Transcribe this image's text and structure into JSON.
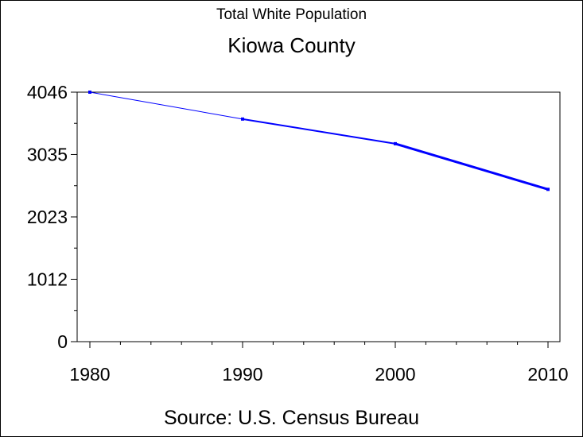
{
  "chart_data": {
    "type": "line",
    "title": "Total White Population",
    "subtitle": "Kiowa County",
    "footnote": "Source: U.S. Census Bureau",
    "x": [
      1980,
      1990,
      2000,
      2010
    ],
    "x_tick_labels": [
      "1980",
      "1990",
      "2000",
      "2010"
    ],
    "series": [
      {
        "values": [
          4046,
          3610,
          3210,
          2470
        ],
        "color": "#0000ff"
      }
    ],
    "y_ticks": [
      0,
      1012,
      2023,
      3035,
      4046
    ],
    "y_tick_labels": [
      "0",
      "1012",
      "2023",
      "3035",
      "4046"
    ],
    "ylim": [
      0,
      4046
    ],
    "xlim": [
      1980,
      2010
    ],
    "grid": false,
    "legend": "none"
  }
}
